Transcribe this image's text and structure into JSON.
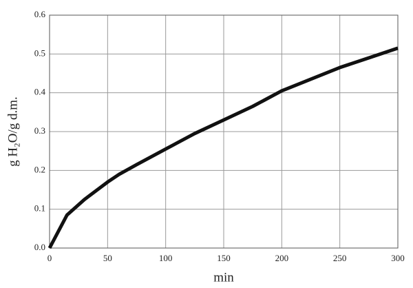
{
  "chart_data": {
    "type": "line",
    "x_label": "min",
    "y_label": "g H₂O/g d.m.",
    "x": [
      0,
      15,
      30,
      50,
      60,
      75,
      100,
      125,
      150,
      175,
      200,
      225,
      250,
      275,
      300
    ],
    "series": [
      {
        "color": "#111111",
        "values": [
          0,
          0.085,
          0.125,
          0.17,
          0.19,
          0.215,
          0.255,
          0.295,
          0.33,
          0.365,
          0.405,
          0.435,
          0.465,
          0.49,
          0.515
        ]
      }
    ],
    "xlim": [
      0,
      300
    ],
    "xticks": [
      0,
      50,
      100,
      150,
      200,
      250,
      300
    ],
    "ylim": [
      0,
      0.6
    ],
    "yticks": [
      {
        "value": 0,
        "label": "0.0"
      },
      0.1,
      0.2,
      0.3,
      0.4,
      0.5,
      0.6
    ],
    "grid": true
  }
}
